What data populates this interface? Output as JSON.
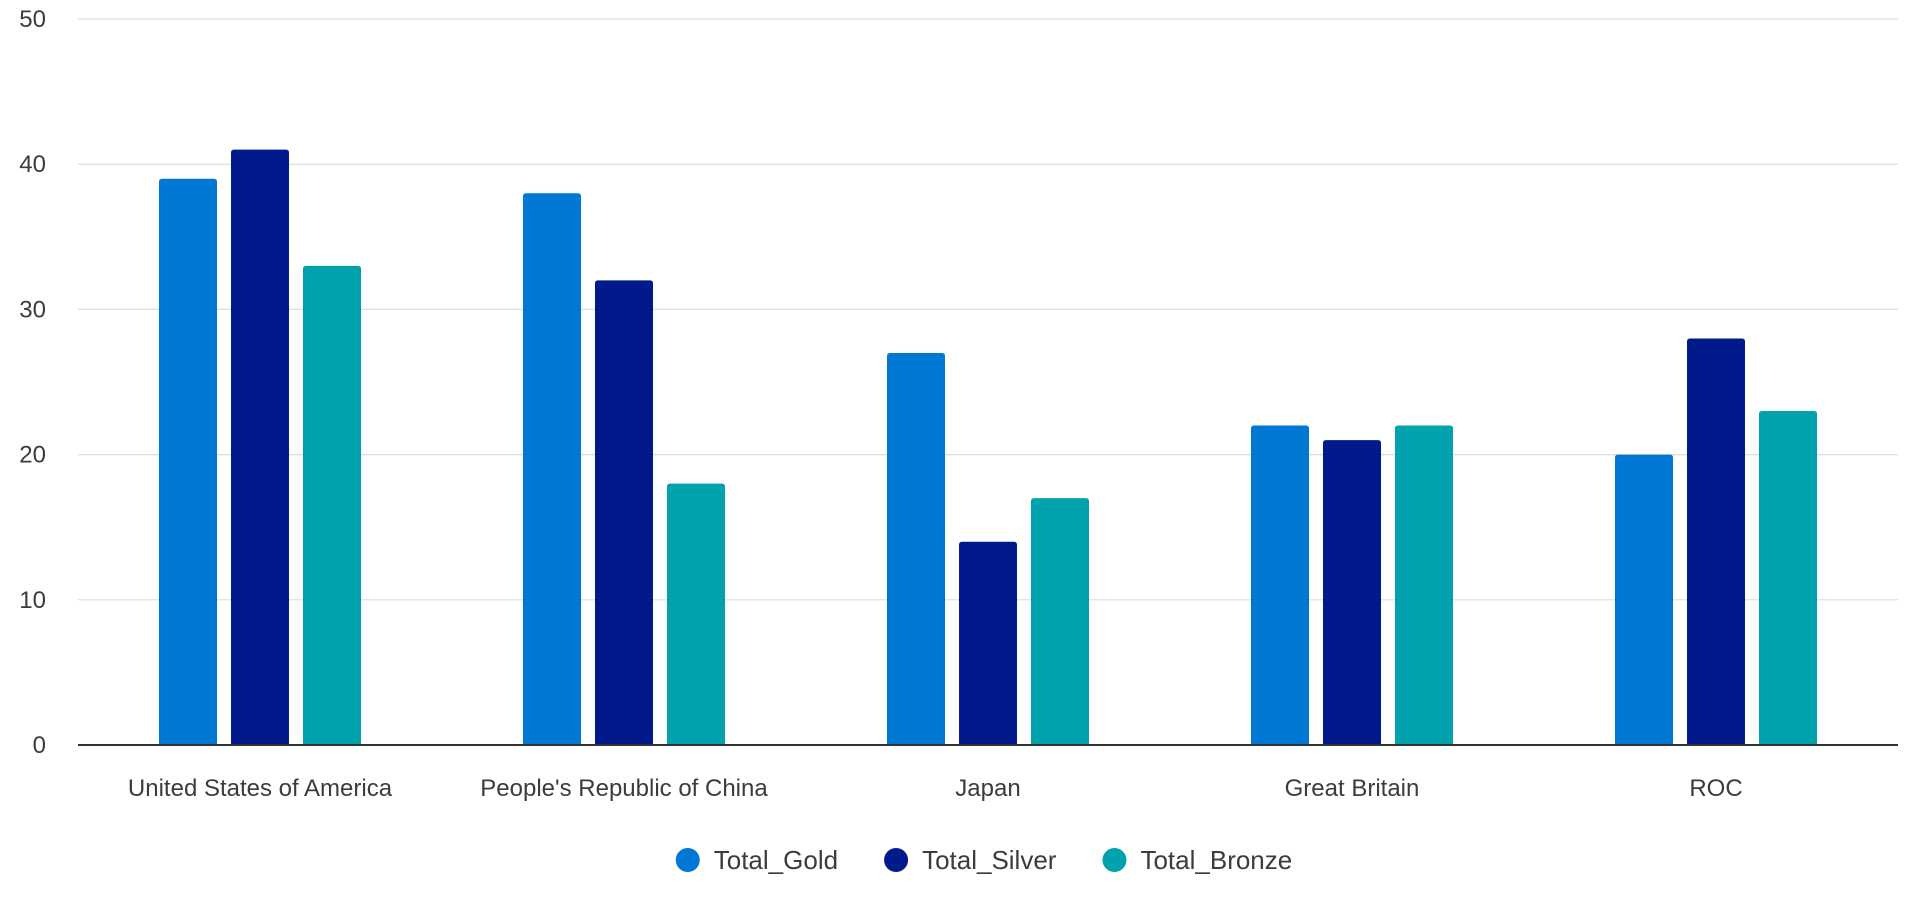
{
  "chart_data": {
    "type": "bar",
    "title": "",
    "xlabel": "",
    "ylabel": "",
    "ylim": [
      0,
      50
    ],
    "y_ticks": [
      0,
      10,
      20,
      30,
      40,
      50
    ],
    "grid": true,
    "legend_position": "bottom",
    "categories": [
      "United States of America",
      "People's Republic of China",
      "Japan",
      "Great Britain",
      "ROC"
    ],
    "series": [
      {
        "name": "Total_Gold",
        "color": "#0078d4",
        "values": [
          39,
          38,
          27,
          22,
          20
        ]
      },
      {
        "name": "Total_Silver",
        "color": "#001a8c",
        "values": [
          41,
          32,
          14,
          21,
          28
        ]
      },
      {
        "name": "Total_Bronze",
        "color": "#00a2ad",
        "values": [
          33,
          18,
          17,
          22,
          23
        ]
      }
    ]
  }
}
